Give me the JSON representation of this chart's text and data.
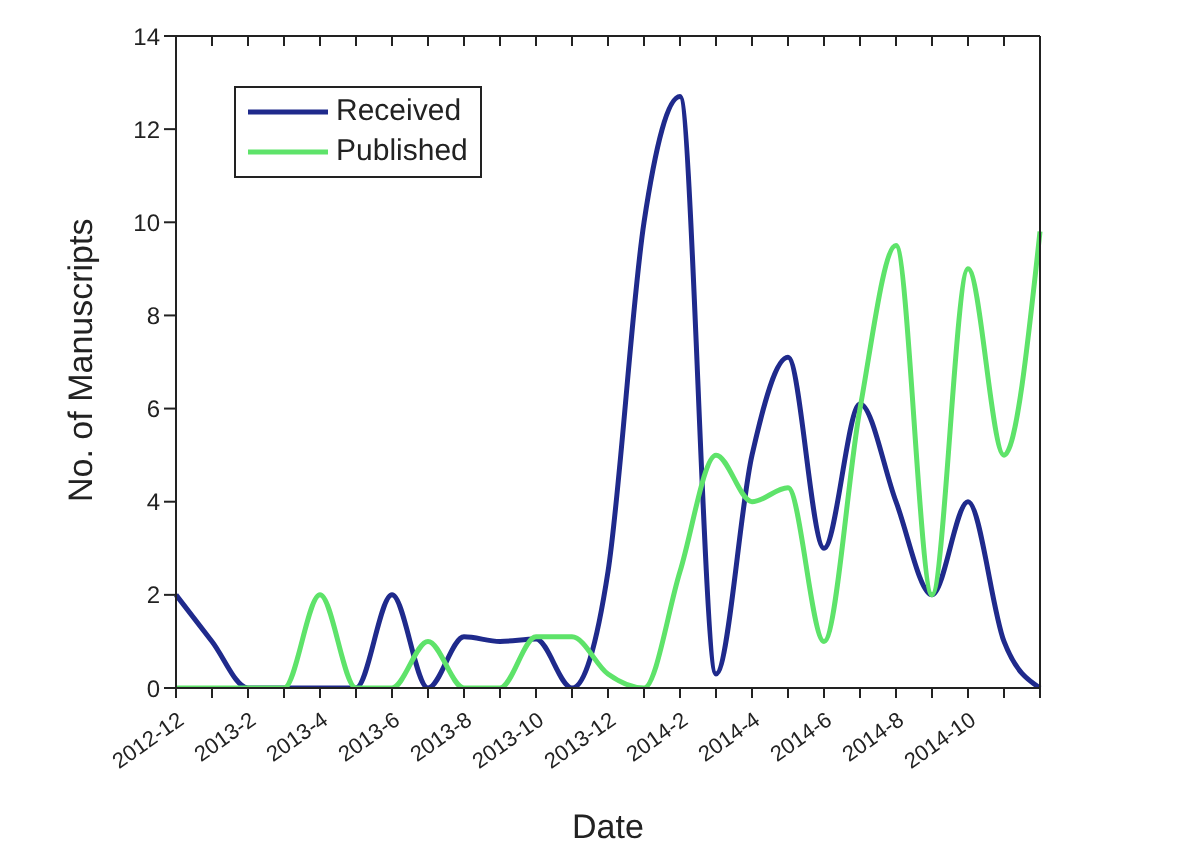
{
  "chart_data": {
    "type": "line",
    "xlabel": "Date",
    "ylabel": "No. of Manuscripts",
    "categories": [
      "2012-12",
      null,
      "2013-2",
      null,
      "2013-4",
      null,
      "2013-6",
      null,
      "2013-8",
      null,
      "2013-10",
      null,
      "2013-12",
      null,
      "2014-2",
      null,
      "2014-4",
      null,
      "2014-6",
      null,
      "2014-8",
      null,
      "2014-10",
      null,
      null
    ],
    "series": [
      {
        "name": "Received",
        "color": "#1f2a8c",
        "values": [
          2,
          1,
          0,
          0,
          0,
          0,
          2,
          0,
          1.1,
          1,
          1.05,
          0,
          2.5,
          10,
          12.7,
          0.3,
          5,
          7.1,
          3,
          6.1,
          4,
          2,
          4,
          1,
          0
        ]
      },
      {
        "name": "Published",
        "color": "#5ee36a",
        "values": [
          0,
          0,
          0,
          0,
          2,
          0,
          0,
          1,
          0,
          0,
          1.1,
          1.1,
          0.3,
          0,
          2.5,
          5,
          4,
          4.3,
          1,
          6,
          9.5,
          2,
          9,
          5,
          9.8
        ]
      }
    ],
    "ylim": [
      0,
      14
    ],
    "yticks": [
      0,
      2,
      4,
      6,
      8,
      10,
      12,
      14
    ],
    "legend": "top left",
    "marker": "none",
    "line_style": "solid"
  }
}
